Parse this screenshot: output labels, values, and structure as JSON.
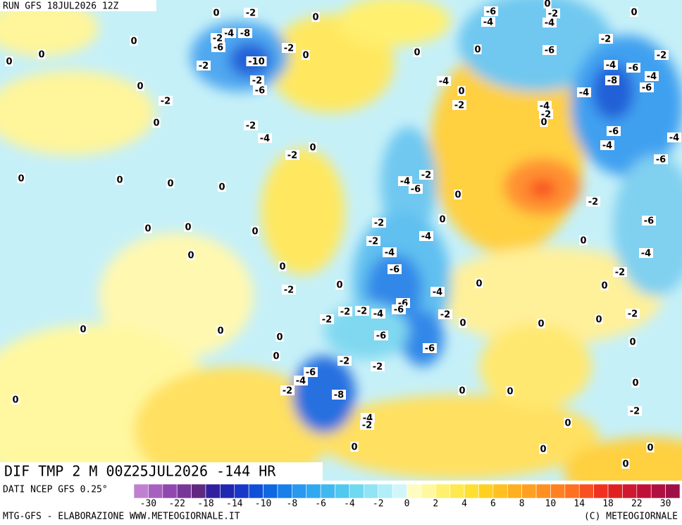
{
  "header": {
    "run": "RUN GFS 18JUL2026 12Z"
  },
  "footer": {
    "title": "DIF TMP 2 M 00Z25JUL2026 -144 HR",
    "source": "DATI NCEP GFS 0.25°",
    "credit": "MTG-GFS - ELABORAZIONE WWW.METEOGIORNALE.IT",
    "copyright": "(C) METEOGIORNALE"
  },
  "colorbar": {
    "colors": [
      "#c080d0",
      "#a860c0",
      "#9048b0",
      "#783898",
      "#602880",
      "#3020a0",
      "#2028b0",
      "#1838c8",
      "#1050d8",
      "#1068e0",
      "#1880e8",
      "#2898f0",
      "#30a8f0",
      "#40b8f0",
      "#50c8f0",
      "#70d8f0",
      "#90e4f4",
      "#b0eef8",
      "#d0f6fa",
      "#fefcc0",
      "#fff8a0",
      "#fff070",
      "#ffe850",
      "#ffe030",
      "#ffd020",
      "#ffc020",
      "#ffb020",
      "#ffa020",
      "#ff9020",
      "#ff8020",
      "#ff7020",
      "#f85020",
      "#f03020",
      "#e02020",
      "#d01830",
      "#c01038",
      "#b01040",
      "#a01048"
    ],
    "ticks": [
      -30,
      -22,
      -18,
      -14,
      -10,
      -8,
      -6,
      -4,
      -2,
      0,
      2,
      4,
      6,
      8,
      10,
      14,
      18,
      22,
      30
    ]
  },
  "map": {
    "labels": [
      0,
      -2,
      -4,
      -6,
      -4,
      -2,
      0,
      0,
      0,
      -4,
      -8,
      -2,
      -6,
      -2,
      0,
      -10,
      -2,
      -2,
      -6,
      -2,
      0,
      0,
      0,
      0,
      0,
      0,
      -2,
      -2,
      -6,
      -4,
      -6,
      -4,
      -8,
      -6,
      -4,
      0,
      -2,
      -4,
      -4,
      -2,
      0,
      0,
      -2,
      -4,
      0,
      -2,
      -6,
      -4,
      -6,
      -4,
      0,
      0,
      0,
      0,
      -2,
      -4,
      -6,
      0,
      -2,
      -6,
      0,
      0,
      0,
      0,
      -2,
      -4,
      0,
      -2,
      0,
      -4,
      -4,
      0,
      -6,
      -2,
      -2,
      0,
      -4,
      0,
      0,
      -6,
      -6,
      -2,
      -4,
      -2,
      -2,
      -2,
      -2,
      0,
      0,
      0,
      0,
      0,
      -6,
      0,
      0,
      -6,
      0,
      -2,
      -2,
      0,
      -6,
      -4,
      -2,
      -8,
      0,
      0,
      0,
      -4,
      -2,
      -2,
      0,
      0,
      0,
      0,
      0
    ]
  }
}
